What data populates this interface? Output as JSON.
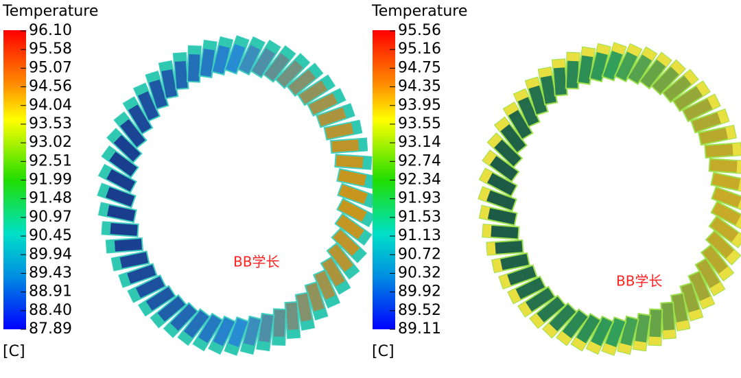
{
  "legends": [
    {
      "title": "Temperature",
      "unit": "[C]",
      "ticks": [
        "96.10",
        "95.58",
        "95.07",
        "94.56",
        "94.04",
        "93.53",
        "93.02",
        "92.51",
        "91.99",
        "91.48",
        "90.97",
        "90.45",
        "89.94",
        "89.43",
        "88.91",
        "88.40",
        "87.89"
      ]
    },
    {
      "title": "Temperature",
      "unit": "[C]",
      "ticks": [
        "95.56",
        "95.16",
        "94.75",
        "94.35",
        "93.95",
        "93.55",
        "93.14",
        "92.74",
        "92.34",
        "91.93",
        "91.53",
        "91.13",
        "90.72",
        "90.32",
        "89.92",
        "89.52",
        "89.11"
      ]
    }
  ],
  "watermarks": [
    "BB学长",
    "BB学长"
  ]
}
